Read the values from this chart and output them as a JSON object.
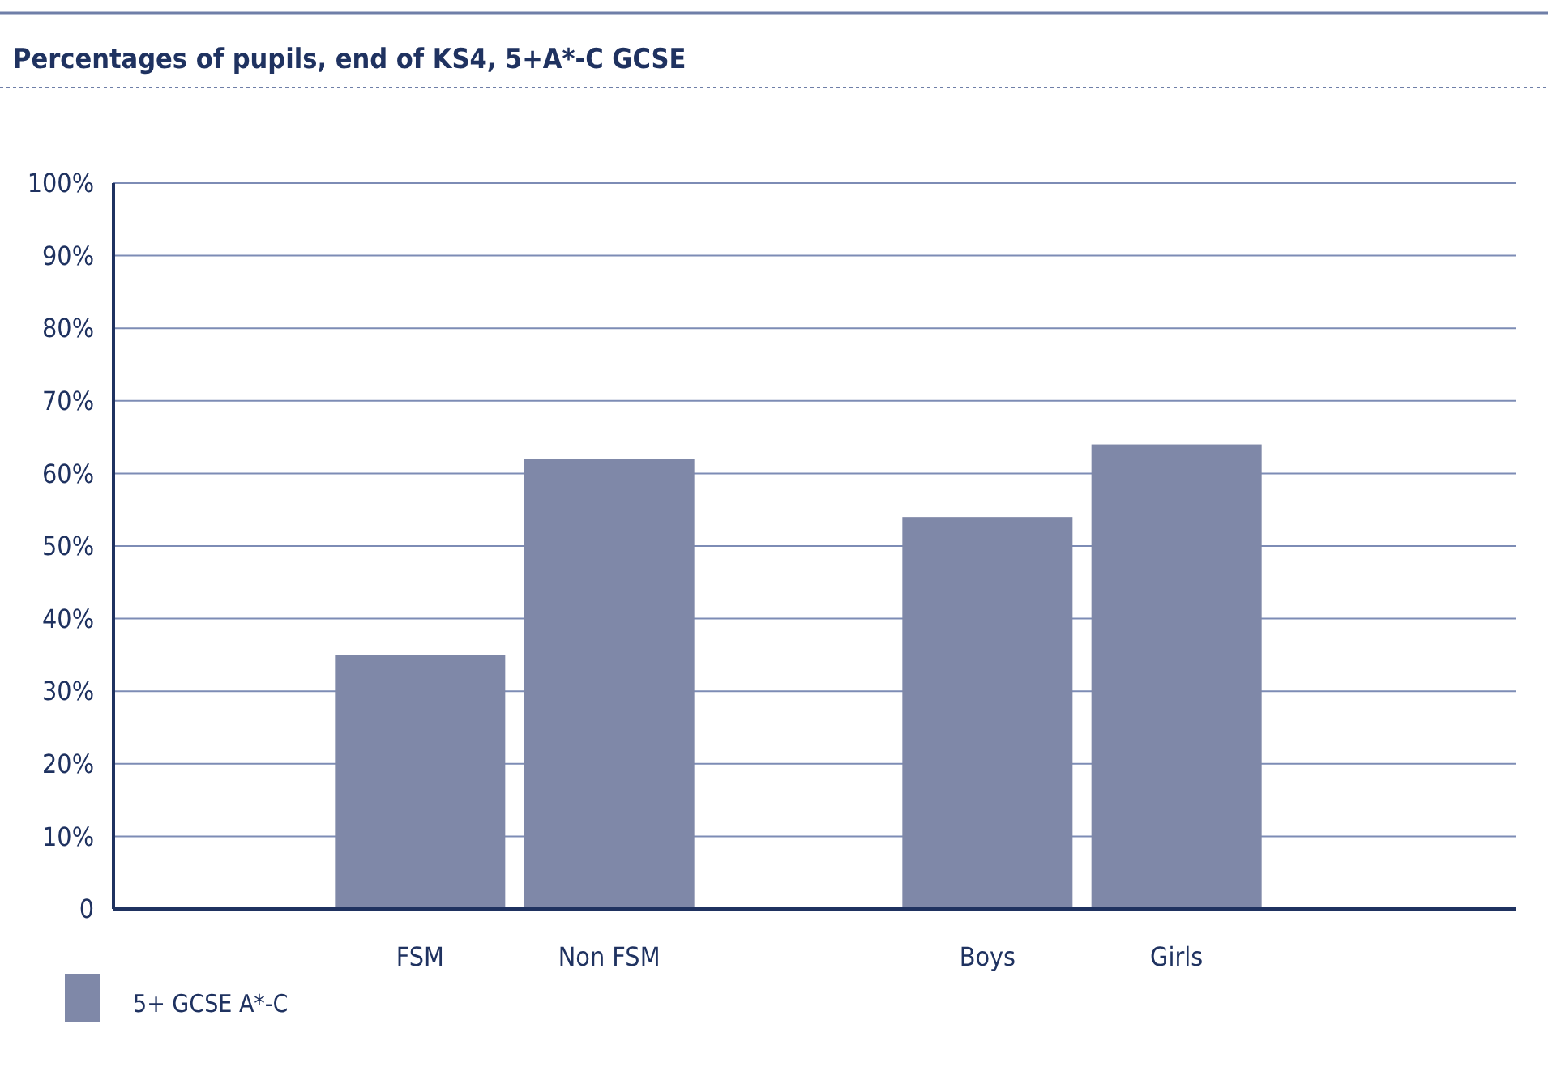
{
  "chart_data": {
    "type": "bar",
    "title": "Percentages of pupils, end of KS4, 5+A*-C GCSE",
    "categories": [
      null,
      "FSM",
      "Non FSM",
      null,
      "Boys",
      "Girls",
      null
    ],
    "series": [
      {
        "name": "5+ GCSE A*-C",
        "color": "#7f88a8",
        "values": [
          null,
          35,
          62,
          null,
          54,
          64,
          null
        ]
      }
    ],
    "ylim": [
      0,
      100
    ],
    "yticks": [
      {
        "value": 0,
        "label": "0"
      },
      {
        "value": 10,
        "label": "10%"
      },
      {
        "value": 20,
        "label": "20%"
      },
      {
        "value": 30,
        "label": "30%"
      },
      {
        "value": 40,
        "label": "40%"
      },
      {
        "value": 50,
        "label": "50%"
      },
      {
        "value": 60,
        "label": "60%"
      },
      {
        "value": 70,
        "label": "70%"
      },
      {
        "value": 80,
        "label": "80%"
      },
      {
        "value": 90,
        "label": "90%"
      },
      {
        "value": 100,
        "label": "100%"
      }
    ],
    "grid": "y",
    "legend": "bottom left"
  }
}
